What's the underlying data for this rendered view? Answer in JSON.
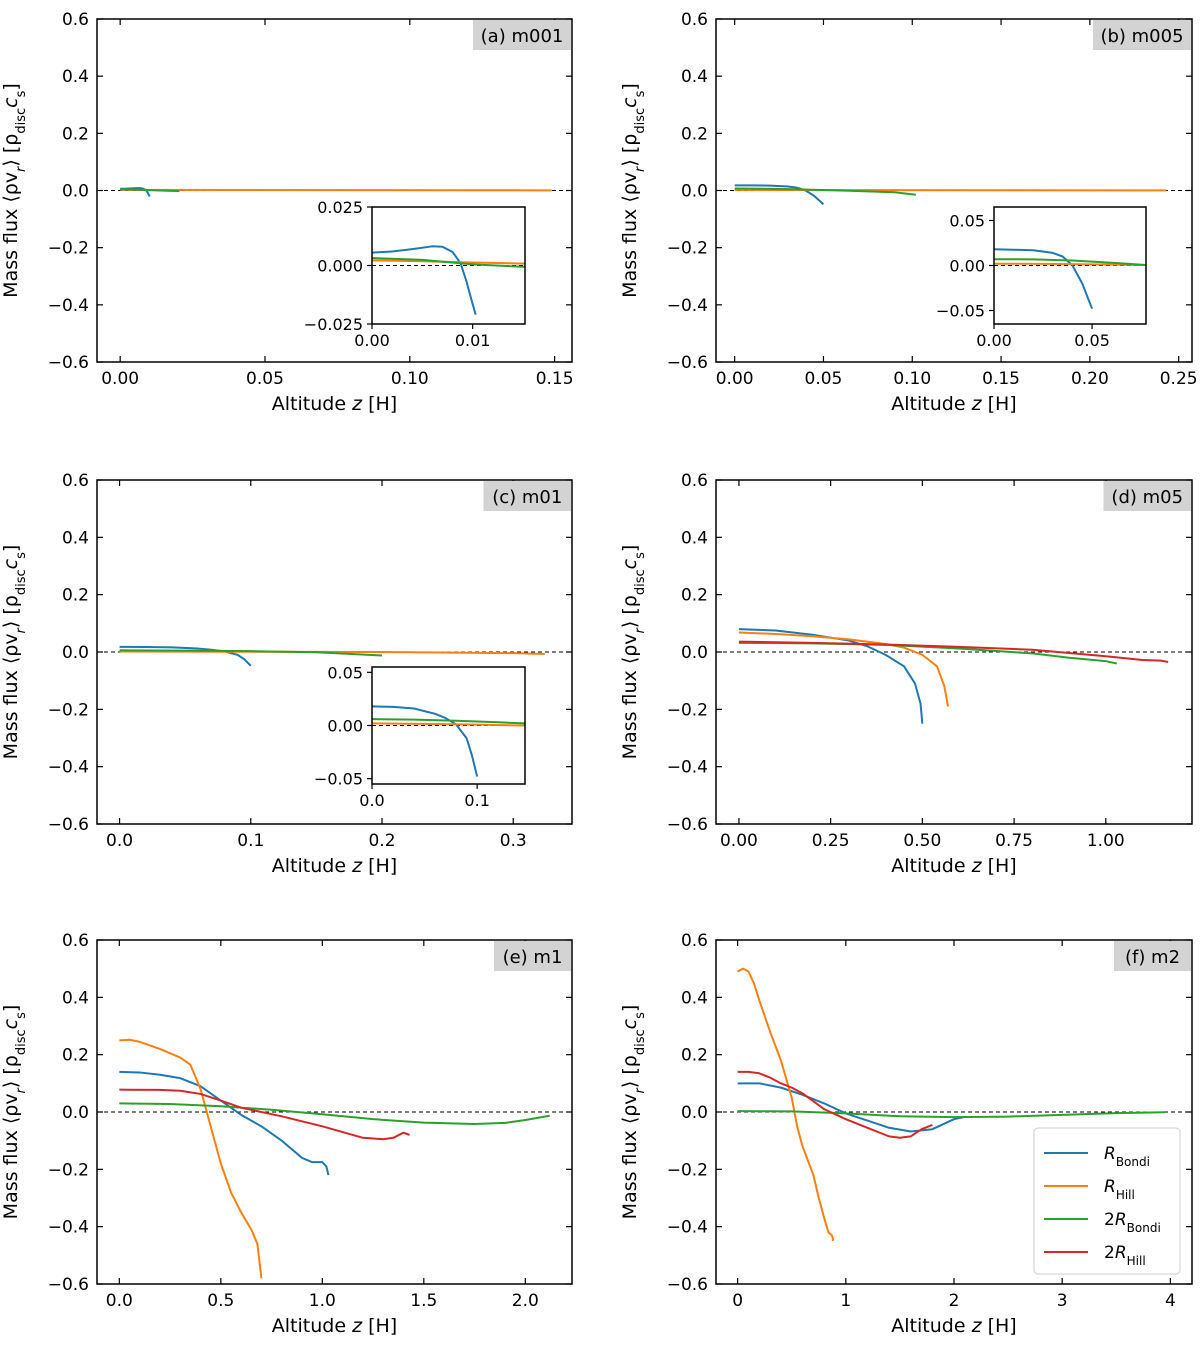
{
  "figure": {
    "ylabel_main": "Mass flux ⟨ρv",
    "ylabel_sub_r": "r",
    "ylabel_mid": "⟩ [ρ",
    "ylabel_sub_disc": "disc",
    "ylabel_c": "c",
    "ylabel_sub_s": "s",
    "ylabel_end": "]",
    "xlabel_pre": "Altitude ",
    "xlabel_var": "z",
    "xlabel_post": " [H]"
  },
  "series_styles": [
    {
      "key": "rb",
      "name": "R_Bondi",
      "color": "#1f77b4"
    },
    {
      "key": "rh",
      "name": "R_Hill",
      "color": "#ff7f0e"
    },
    {
      "key": "rb2",
      "name": "2R_Bondi",
      "color": "#2ca02c"
    },
    {
      "key": "rh2",
      "name": "2R_Hill",
      "color": "#d62728"
    }
  ],
  "legend": {
    "entries": [
      {
        "prefix": "",
        "main": "R",
        "sub": "Bondi"
      },
      {
        "prefix": "",
        "main": "R",
        "sub": "Hill"
      },
      {
        "prefix": "2",
        "main": "R",
        "sub": "Bondi"
      },
      {
        "prefix": "2",
        "main": "R",
        "sub": "Hill"
      }
    ]
  },
  "chart_data": [
    {
      "type": "line",
      "title": "(a) m001",
      "xlabel": "Altitude z [H]",
      "ylabel": "Mass flux ⟨ρv_r⟩ [ρ_disc c_s]",
      "xlim": [
        -0.008,
        0.156
      ],
      "ylim": [
        -0.6,
        0.6
      ],
      "xticks": [
        0.0,
        0.05,
        0.1,
        0.15
      ],
      "xtick_labels": [
        "0.00",
        "0.05",
        "0.10",
        "0.15"
      ],
      "yticks": [
        0.6,
        0.4,
        0.2,
        0.0,
        -0.2,
        -0.4,
        -0.6
      ],
      "ytick_labels": [
        "0.6",
        "0.4",
        "0.2",
        "0.0",
        "−0.2",
        "−0.4",
        "−0.6"
      ],
      "series": [
        {
          "key": "rb",
          "x": [
            0.0,
            0.002,
            0.004,
            0.006,
            0.007,
            0.008,
            0.009,
            0.0095,
            0.0102
          ],
          "y": [
            0.006,
            0.0065,
            0.0075,
            0.0085,
            0.0082,
            0.006,
            0.001,
            -0.008,
            -0.021
          ]
        },
        {
          "key": "rh",
          "x": [
            0.0,
            0.04,
            0.08,
            0.12,
            0.149
          ],
          "y": [
            0.002,
            0.0018,
            0.0015,
            0.001,
            0.0006
          ]
        },
        {
          "key": "rb2",
          "x": [
            0.0,
            0.005,
            0.01,
            0.015,
            0.0205
          ],
          "y": [
            0.004,
            0.003,
            0.0015,
            -0.0005,
            -0.002
          ]
        }
      ],
      "inset": {
        "xlim": [
          0.0,
          0.0152
        ],
        "ylim": [
          -0.025,
          0.025
        ],
        "xticks": [
          0.0,
          0.01
        ],
        "xtick_labels": [
          "0.00",
          "0.01"
        ],
        "yticks": [
          0.025,
          0.0,
          -0.025
        ],
        "ytick_labels": [
          "0.025",
          "0.000",
          "−0.025"
        ],
        "series": [
          {
            "key": "rb",
            "x": [
              0.0,
              0.002,
              0.004,
              0.006,
              0.007,
              0.008,
              0.0088,
              0.0094,
              0.0099,
              0.0103
            ],
            "y": [
              0.0055,
              0.006,
              0.007,
              0.0082,
              0.008,
              0.0058,
              0.001,
              -0.007,
              -0.015,
              -0.021
            ]
          },
          {
            "key": "rh",
            "x": [
              0.0,
              0.005,
              0.01,
              0.0152
            ],
            "y": [
              0.0022,
              0.0018,
              0.0013,
              0.0008
            ]
          },
          {
            "key": "rb2",
            "x": [
              0.0,
              0.005,
              0.01,
              0.0152
            ],
            "y": [
              0.0032,
              0.0024,
              0.0005,
              -0.0006
            ]
          }
        ]
      }
    },
    {
      "type": "line",
      "title": "(b) m005",
      "xlabel": "Altitude z [H]",
      "ylabel": "Mass flux ⟨ρv_r⟩ [ρ_disc c_s]",
      "xlim": [
        -0.0105,
        0.2575
      ],
      "ylim": [
        -0.6,
        0.6
      ],
      "xticks": [
        0.0,
        0.05,
        0.1,
        0.15,
        0.2,
        0.25
      ],
      "xtick_labels": [
        "0.00",
        "0.05",
        "0.10",
        "0.15",
        "0.20",
        "0.25"
      ],
      "yticks": [
        0.6,
        0.4,
        0.2,
        0.0,
        -0.2,
        -0.4,
        -0.6
      ],
      "ytick_labels": [
        "0.6",
        "0.4",
        "0.2",
        "0.0",
        "−0.2",
        "−0.4",
        "−0.6"
      ],
      "series": [
        {
          "key": "rb",
          "x": [
            0.0,
            0.01,
            0.02,
            0.03,
            0.035,
            0.04,
            0.045,
            0.05
          ],
          "y": [
            0.018,
            0.018,
            0.017,
            0.014,
            0.01,
            0.0,
            -0.02,
            -0.048
          ]
        },
        {
          "key": "rh",
          "x": [
            0.0,
            0.08,
            0.16,
            0.243
          ],
          "y": [
            0.002,
            0.0015,
            0.001,
            0.0003
          ]
        },
        {
          "key": "rb2",
          "x": [
            0.0,
            0.03,
            0.06,
            0.09,
            0.102
          ],
          "y": [
            0.007,
            0.005,
            0.0,
            -0.006,
            -0.015
          ]
        }
      ],
      "inset": {
        "xlim": [
          0.0,
          0.0775
        ],
        "ylim": [
          -0.065,
          0.065
        ],
        "xticks": [
          0.0,
          0.05
        ],
        "xtick_labels": [
          "0.00",
          "0.05"
        ],
        "yticks": [
          0.05,
          0.0,
          -0.05
        ],
        "ytick_labels": [
          "0.05",
          "0.00",
          "−0.05"
        ],
        "series": [
          {
            "key": "rb",
            "x": [
              0.0,
              0.01,
              0.02,
              0.03,
              0.035,
              0.04,
              0.045,
              0.05
            ],
            "y": [
              0.018,
              0.0175,
              0.017,
              0.014,
              0.01,
              0.0,
              -0.02,
              -0.048
            ]
          },
          {
            "key": "rh",
            "x": [
              0.0,
              0.025,
              0.05,
              0.0775
            ],
            "y": [
              0.002,
              0.0018,
              0.0012,
              0.0005
            ]
          },
          {
            "key": "rb2",
            "x": [
              0.0,
              0.02,
              0.04,
              0.06,
              0.0775
            ],
            "y": [
              0.007,
              0.0068,
              0.0055,
              0.003,
              0.0005
            ]
          }
        ]
      }
    },
    {
      "type": "line",
      "title": "(c) m01",
      "xlabel": "Altitude z [H]",
      "ylabel": "Mass flux ⟨ρv_r⟩ [ρ_disc c_s]",
      "xlim": [
        -0.0172,
        0.3448
      ],
      "ylim": [
        -0.6,
        0.6
      ],
      "xticks": [
        0.0,
        0.1,
        0.2,
        0.3
      ],
      "xtick_labels": [
        "0.0",
        "0.1",
        "0.2",
        "0.3"
      ],
      "yticks": [
        0.6,
        0.4,
        0.2,
        0.0,
        -0.2,
        -0.4,
        -0.6
      ],
      "ytick_labels": [
        "0.6",
        "0.4",
        "0.2",
        "0.0",
        "−0.2",
        "−0.4",
        "−0.6"
      ],
      "series": [
        {
          "key": "rb",
          "x": [
            0.0,
            0.02,
            0.04,
            0.06,
            0.07,
            0.08,
            0.09,
            0.095,
            0.1
          ],
          "y": [
            0.018,
            0.0175,
            0.016,
            0.012,
            0.008,
            0.002,
            -0.01,
            -0.025,
            -0.048
          ]
        },
        {
          "key": "rh",
          "x": [
            0.0,
            0.1,
            0.2,
            0.3,
            0.324
          ],
          "y": [
            0.002,
            0.001,
            0.0,
            -0.004,
            -0.007
          ]
        },
        {
          "key": "rb2",
          "x": [
            0.0,
            0.05,
            0.1,
            0.15,
            0.2
          ],
          "y": [
            0.006,
            0.005,
            0.003,
            -0.001,
            -0.012
          ]
        }
      ],
      "inset": {
        "xlim": [
          0.0,
          0.1455
        ],
        "ylim": [
          -0.055,
          0.055
        ],
        "xticks": [
          0.0,
          0.1
        ],
        "xtick_labels": [
          "0.0",
          "0.1"
        ],
        "yticks": [
          0.05,
          0.0,
          -0.05
        ],
        "ytick_labels": [
          "0.05",
          "0.00",
          "−0.05"
        ],
        "series": [
          {
            "key": "rb",
            "x": [
              0.0,
              0.02,
              0.04,
              0.06,
              0.07,
              0.08,
              0.09,
              0.095,
              0.1
            ],
            "y": [
              0.018,
              0.0175,
              0.016,
              0.011,
              0.007,
              0.001,
              -0.012,
              -0.028,
              -0.048
            ]
          },
          {
            "key": "rh",
            "x": [
              0.0,
              0.05,
              0.1,
              0.1455
            ],
            "y": [
              0.002,
              0.0015,
              0.0008,
              0.0
            ]
          },
          {
            "key": "rb2",
            "x": [
              0.0,
              0.04,
              0.08,
              0.12,
              0.1455
            ],
            "y": [
              0.006,
              0.0055,
              0.0045,
              0.003,
              0.002
            ]
          }
        ]
      }
    },
    {
      "type": "line",
      "title": "(d) m05",
      "xlabel": "Altitude z [H]",
      "ylabel": "Mass flux ⟨ρv_r⟩ [ρ_disc c_s]",
      "xlim": [
        -0.0625,
        1.235
      ],
      "ylim": [
        -0.6,
        0.6
      ],
      "xticks": [
        0.0,
        0.25,
        0.5,
        0.75,
        1.0
      ],
      "xtick_labels": [
        "0.00",
        "0.25",
        "0.50",
        "0.75",
        "1.00"
      ],
      "yticks": [
        0.6,
        0.4,
        0.2,
        0.0,
        -0.2,
        -0.4,
        -0.6
      ],
      "ytick_labels": [
        "0.6",
        "0.4",
        "0.2",
        "0.0",
        "−0.2",
        "−0.4",
        "−0.6"
      ],
      "series": [
        {
          "key": "rb",
          "x": [
            0.0,
            0.1,
            0.2,
            0.3,
            0.35,
            0.4,
            0.45,
            0.48,
            0.495,
            0.5
          ],
          "y": [
            0.08,
            0.075,
            0.06,
            0.04,
            0.02,
            -0.01,
            -0.05,
            -0.11,
            -0.18,
            -0.25
          ]
        },
        {
          "key": "rh",
          "x": [
            0.0,
            0.1,
            0.2,
            0.3,
            0.4,
            0.45,
            0.5,
            0.54,
            0.56,
            0.57
          ],
          "y": [
            0.068,
            0.063,
            0.055,
            0.044,
            0.028,
            0.015,
            -0.01,
            -0.05,
            -0.12,
            -0.19
          ]
        },
        {
          "key": "rb2",
          "x": [
            0.0,
            0.2,
            0.4,
            0.6,
            0.8,
            0.9,
            1.0,
            1.03
          ],
          "y": [
            0.032,
            0.03,
            0.025,
            0.012,
            -0.005,
            -0.02,
            -0.032,
            -0.04
          ]
        },
        {
          "key": "rh2",
          "x": [
            0.0,
            0.2,
            0.4,
            0.6,
            0.8,
            1.0,
            1.1,
            1.15,
            1.17
          ],
          "y": [
            0.036,
            0.032,
            0.026,
            0.018,
            0.008,
            -0.015,
            -0.028,
            -0.03,
            -0.035
          ]
        }
      ]
    },
    {
      "type": "line",
      "title": "(e) m1",
      "xlabel": "Altitude z [H]",
      "ylabel": "Mass flux ⟨ρv_r⟩ [ρ_disc c_s]",
      "xlim": [
        -0.11,
        2.23
      ],
      "ylim": [
        -0.6,
        0.6
      ],
      "xticks": [
        0.0,
        0.5,
        1.0,
        1.5,
        2.0
      ],
      "xtick_labels": [
        "0.0",
        "0.5",
        "1.0",
        "1.5",
        "2.0"
      ],
      "yticks": [
        0.6,
        0.4,
        0.2,
        0.0,
        -0.2,
        -0.4,
        -0.6
      ],
      "ytick_labels": [
        "0.6",
        "0.4",
        "0.2",
        "0.0",
        "−0.2",
        "−0.4",
        "−0.6"
      ],
      "series": [
        {
          "key": "rb",
          "x": [
            0.0,
            0.1,
            0.2,
            0.3,
            0.4,
            0.5,
            0.6,
            0.7,
            0.8,
            0.9,
            0.95,
            1.0,
            1.02,
            1.03
          ],
          "y": [
            0.14,
            0.138,
            0.13,
            0.118,
            0.09,
            0.04,
            -0.01,
            -0.05,
            -0.1,
            -0.16,
            -0.175,
            -0.175,
            -0.19,
            -0.22
          ]
        },
        {
          "key": "rh",
          "x": [
            0.0,
            0.05,
            0.1,
            0.2,
            0.3,
            0.35,
            0.4,
            0.45,
            0.5,
            0.55,
            0.6,
            0.65,
            0.68,
            0.69,
            0.7
          ],
          "y": [
            0.25,
            0.252,
            0.245,
            0.22,
            0.19,
            0.165,
            0.08,
            -0.05,
            -0.18,
            -0.28,
            -0.35,
            -0.41,
            -0.46,
            -0.52,
            -0.58
          ]
        },
        {
          "key": "rb2",
          "x": [
            0.0,
            0.25,
            0.5,
            0.75,
            1.0,
            1.25,
            1.5,
            1.75,
            1.9,
            2.0,
            2.12
          ],
          "y": [
            0.03,
            0.028,
            0.02,
            0.008,
            -0.008,
            -0.025,
            -0.037,
            -0.042,
            -0.038,
            -0.028,
            -0.013
          ]
        },
        {
          "key": "rh2",
          "x": [
            0.0,
            0.2,
            0.3,
            0.4,
            0.5,
            0.6,
            0.8,
            1.0,
            1.2,
            1.3,
            1.35,
            1.4,
            1.43
          ],
          "y": [
            0.078,
            0.077,
            0.074,
            0.063,
            0.04,
            0.015,
            -0.015,
            -0.05,
            -0.09,
            -0.095,
            -0.09,
            -0.072,
            -0.08
          ]
        }
      ]
    },
    {
      "type": "line",
      "title": "(f) m2",
      "xlabel": "Altitude z [H]",
      "ylabel": "Mass flux ⟨ρv_r⟩ [ρ_disc c_s]",
      "xlim": [
        -0.2,
        4.2
      ],
      "ylim": [
        -0.6,
        0.6
      ],
      "xticks": [
        0,
        1,
        2,
        3,
        4
      ],
      "xtick_labels": [
        "0",
        "1",
        "2",
        "3",
        "4"
      ],
      "yticks": [
        0.6,
        0.4,
        0.2,
        0.0,
        -0.2,
        -0.4,
        -0.6
      ],
      "ytick_labels": [
        "0.6",
        "0.4",
        "0.2",
        "0.0",
        "−0.2",
        "−0.4",
        "−0.6"
      ],
      "series": [
        {
          "key": "rb",
          "x": [
            0.0,
            0.2,
            0.4,
            0.6,
            0.8,
            1.0,
            1.2,
            1.4,
            1.6,
            1.8,
            2.0,
            2.1
          ],
          "y": [
            0.1,
            0.1,
            0.085,
            0.06,
            0.03,
            -0.005,
            -0.03,
            -0.055,
            -0.068,
            -0.06,
            -0.025,
            -0.017
          ]
        },
        {
          "key": "rh",
          "x": [
            0.0,
            0.05,
            0.1,
            0.15,
            0.2,
            0.3,
            0.4,
            0.5,
            0.55,
            0.6,
            0.7,
            0.75,
            0.8,
            0.84,
            0.87,
            0.88,
            0.88
          ],
          "y": [
            0.49,
            0.5,
            0.49,
            0.45,
            0.39,
            0.28,
            0.18,
            0.05,
            -0.05,
            -0.12,
            -0.22,
            -0.3,
            -0.37,
            -0.42,
            -0.43,
            -0.44,
            -0.45
          ]
        },
        {
          "key": "rb2",
          "x": [
            0.0,
            0.5,
            1.0,
            1.5,
            2.0,
            2.5,
            3.0,
            3.5,
            3.95
          ],
          "y": [
            0.003,
            0.002,
            -0.005,
            -0.015,
            -0.018,
            -0.016,
            -0.01,
            -0.004,
            -0.001
          ]
        },
        {
          "key": "rh2",
          "x": [
            0.0,
            0.1,
            0.2,
            0.3,
            0.4,
            0.5,
            0.6,
            0.8,
            1.0,
            1.2,
            1.4,
            1.5,
            1.6,
            1.7,
            1.8
          ],
          "y": [
            0.14,
            0.14,
            0.135,
            0.12,
            0.1,
            0.085,
            0.065,
            0.01,
            -0.025,
            -0.055,
            -0.085,
            -0.09,
            -0.085,
            -0.06,
            -0.045
          ]
        }
      ]
    }
  ]
}
